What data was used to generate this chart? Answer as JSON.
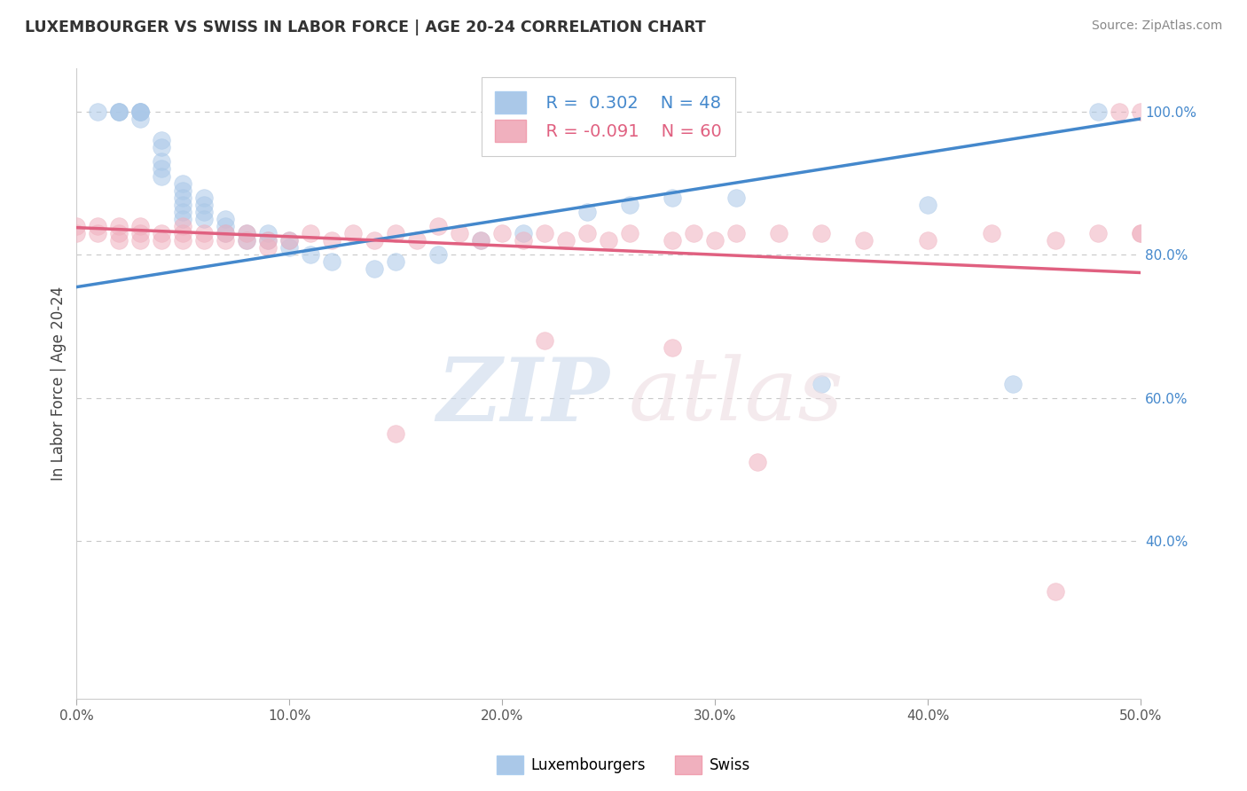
{
  "title": "LUXEMBOURGER VS SWISS IN LABOR FORCE | AGE 20-24 CORRELATION CHART",
  "source": "Source: ZipAtlas.com",
  "ylabel": "In Labor Force | Age 20-24",
  "xlim": [
    0.0,
    0.5
  ],
  "ylim": [
    0.18,
    1.06
  ],
  "xticks": [
    0.0,
    0.1,
    0.2,
    0.3,
    0.4,
    0.5
  ],
  "xticklabels": [
    "0.0%",
    "10.0%",
    "20.0%",
    "30.0%",
    "40.0%",
    "50.0%"
  ],
  "yticks_right": [
    0.4,
    0.6,
    0.8,
    1.0
  ],
  "ytick_right_labels": [
    "40.0%",
    "60.0%",
    "80.0%",
    "100.0%"
  ],
  "legend_blue_r": "R =  0.302",
  "legend_blue_n": "N = 48",
  "legend_pink_r": "R = -0.091",
  "legend_pink_n": "N = 60",
  "blue_color": "#aac8e8",
  "pink_color": "#f0b0be",
  "blue_line_color": "#4488cc",
  "pink_line_color": "#e06080",
  "blue_scatter_x": [
    0.01,
    0.02,
    0.02,
    0.02,
    0.03,
    0.03,
    0.03,
    0.03,
    0.03,
    0.04,
    0.04,
    0.04,
    0.04,
    0.04,
    0.05,
    0.05,
    0.05,
    0.05,
    0.05,
    0.05,
    0.06,
    0.06,
    0.06,
    0.06,
    0.07,
    0.07,
    0.07,
    0.08,
    0.08,
    0.09,
    0.09,
    0.1,
    0.1,
    0.11,
    0.12,
    0.14,
    0.15,
    0.17,
    0.19,
    0.21,
    0.24,
    0.26,
    0.28,
    0.31,
    0.35,
    0.4,
    0.44,
    0.48
  ],
  "blue_scatter_y": [
    1.0,
    1.0,
    1.0,
    1.0,
    1.0,
    1.0,
    1.0,
    1.0,
    0.99,
    0.96,
    0.95,
    0.93,
    0.92,
    0.91,
    0.9,
    0.89,
    0.88,
    0.87,
    0.86,
    0.85,
    0.88,
    0.87,
    0.86,
    0.85,
    0.85,
    0.84,
    0.83,
    0.83,
    0.82,
    0.83,
    0.82,
    0.82,
    0.81,
    0.8,
    0.79,
    0.78,
    0.79,
    0.8,
    0.82,
    0.83,
    0.86,
    0.87,
    0.88,
    0.88,
    0.62,
    0.87,
    0.62,
    1.0
  ],
  "pink_scatter_x": [
    0.0,
    0.0,
    0.01,
    0.01,
    0.02,
    0.02,
    0.02,
    0.03,
    0.03,
    0.03,
    0.04,
    0.04,
    0.05,
    0.05,
    0.05,
    0.06,
    0.06,
    0.07,
    0.07,
    0.08,
    0.08,
    0.09,
    0.09,
    0.1,
    0.11,
    0.12,
    0.13,
    0.14,
    0.15,
    0.16,
    0.17,
    0.18,
    0.19,
    0.2,
    0.21,
    0.22,
    0.23,
    0.24,
    0.25,
    0.26,
    0.28,
    0.29,
    0.3,
    0.31,
    0.33,
    0.35,
    0.37,
    0.4,
    0.43,
    0.46,
    0.48,
    0.49,
    0.5,
    0.5,
    0.5,
    0.22,
    0.28,
    0.15,
    0.32,
    0.46
  ],
  "pink_scatter_y": [
    0.84,
    0.83,
    0.84,
    0.83,
    0.84,
    0.83,
    0.82,
    0.84,
    0.83,
    0.82,
    0.83,
    0.82,
    0.84,
    0.83,
    0.82,
    0.83,
    0.82,
    0.83,
    0.82,
    0.83,
    0.82,
    0.82,
    0.81,
    0.82,
    0.83,
    0.82,
    0.83,
    0.82,
    0.83,
    0.82,
    0.84,
    0.83,
    0.82,
    0.83,
    0.82,
    0.83,
    0.82,
    0.83,
    0.82,
    0.83,
    0.82,
    0.83,
    0.82,
    0.83,
    0.83,
    0.83,
    0.82,
    0.82,
    0.83,
    0.82,
    0.83,
    1.0,
    1.0,
    0.83,
    0.83,
    0.68,
    0.67,
    0.55,
    0.51,
    0.33
  ],
  "blue_trendline_x": [
    0.0,
    0.5
  ],
  "blue_trendline_y": [
    0.755,
    0.99
  ],
  "pink_trendline_x": [
    0.0,
    0.5
  ],
  "pink_trendline_y": [
    0.838,
    0.775
  ]
}
